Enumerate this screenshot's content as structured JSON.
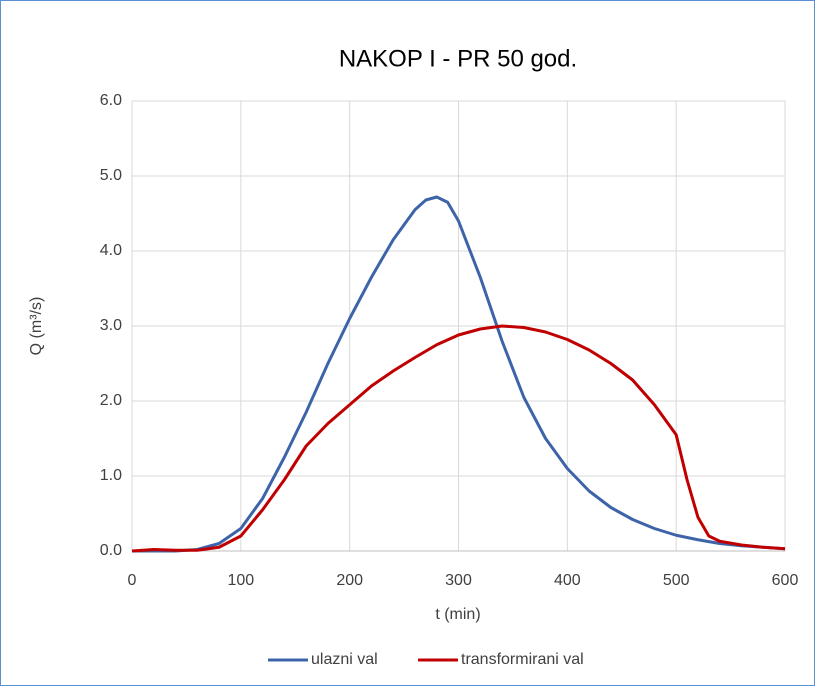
{
  "chart_data": {
    "type": "line",
    "title": "NAKOP I - PR 50 god.",
    "x_label": "t (min)",
    "y_label": "Q (m³/s)",
    "xlim": [
      0,
      600
    ],
    "xticks": [
      0,
      100,
      200,
      300,
      400,
      500,
      600
    ],
    "ylim": [
      0,
      6
    ],
    "yticks": [
      {
        "value": 0,
        "label": "0.0"
      },
      {
        "value": 1,
        "label": "1.0"
      },
      {
        "value": 2,
        "label": "2.0"
      },
      {
        "value": 3,
        "label": "3.0"
      },
      {
        "value": 4,
        "label": "4.0"
      },
      {
        "value": 5,
        "label": "5.0"
      },
      {
        "value": 6,
        "label": "6.0"
      }
    ],
    "grid": true,
    "legend": "bottom",
    "series": [
      {
        "name": "ulazni val",
        "color": "#3d64a8",
        "x": [
          0,
          20,
          40,
          60,
          80,
          100,
          120,
          140,
          160,
          180,
          200,
          220,
          240,
          260,
          270,
          280,
          290,
          300,
          320,
          340,
          360,
          380,
          400,
          420,
          440,
          460,
          480,
          500,
          520,
          540,
          560,
          580,
          600
        ],
        "values": [
          0,
          0,
          0,
          0.02,
          0.1,
          0.3,
          0.7,
          1.25,
          1.85,
          2.5,
          3.1,
          3.65,
          4.15,
          4.55,
          4.68,
          4.72,
          4.65,
          4.4,
          3.65,
          2.8,
          2.05,
          1.5,
          1.1,
          0.8,
          0.58,
          0.42,
          0.3,
          0.21,
          0.15,
          0.1,
          0.07,
          0.05,
          0.03
        ]
      },
      {
        "name": "transformirani val",
        "color": "#c00000",
        "x": [
          0,
          20,
          40,
          60,
          80,
          100,
          120,
          140,
          160,
          180,
          200,
          220,
          240,
          260,
          280,
          300,
          320,
          340,
          360,
          380,
          400,
          420,
          440,
          460,
          480,
          500,
          510,
          520,
          530,
          540,
          560,
          580,
          600
        ],
        "values": [
          0,
          0.02,
          0.01,
          0.01,
          0.05,
          0.2,
          0.55,
          0.95,
          1.4,
          1.7,
          1.95,
          2.2,
          2.4,
          2.58,
          2.75,
          2.88,
          2.96,
          3.0,
          2.98,
          2.92,
          2.82,
          2.68,
          2.5,
          2.28,
          1.95,
          1.55,
          0.95,
          0.45,
          0.2,
          0.13,
          0.08,
          0.05,
          0.03
        ]
      }
    ]
  }
}
